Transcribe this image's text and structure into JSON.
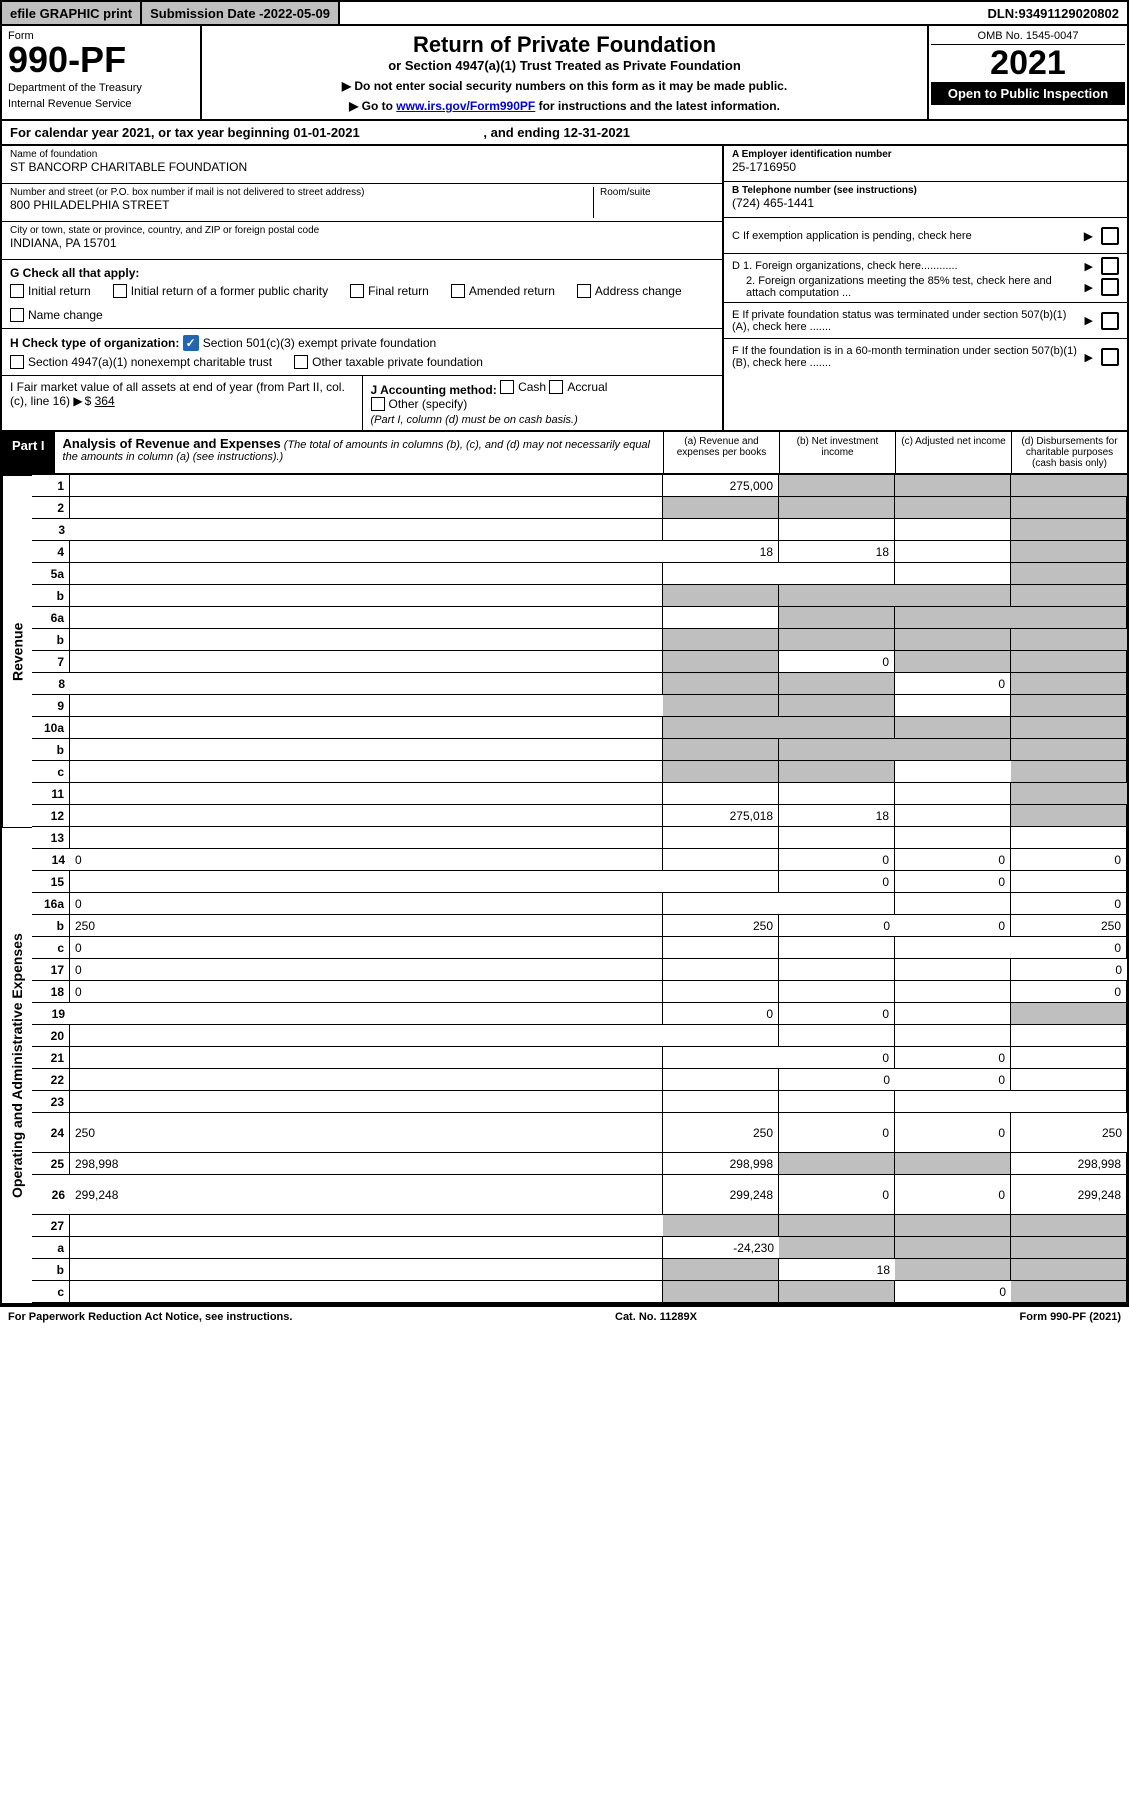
{
  "top_bar": {
    "efile": "efile GRAPHIC print",
    "sub_date_label": "Submission Date - ",
    "sub_date": "2022-05-09",
    "dln_label": "DLN: ",
    "dln": "93491129020802"
  },
  "header": {
    "form_label": "Form",
    "form_number": "990-PF",
    "dept1": "Department of the Treasury",
    "dept2": "Internal Revenue Service",
    "title": "Return of Private Foundation",
    "subtitle": "or Section 4947(a)(1) Trust Treated as Private Foundation",
    "note1": "Do not enter social security numbers on this form as it may be made public.",
    "note2_pre": "Go to ",
    "note2_link": "www.irs.gov/Form990PF",
    "note2_post": " for instructions and the latest information.",
    "omb": "OMB No. 1545-0047",
    "year": "2021",
    "open_pub": "Open to Public Inspection"
  },
  "cal_year": {
    "prefix": "For calendar year 2021, or tax year beginning ",
    "begin": "01-01-2021",
    "mid": " , and ending ",
    "end": "12-31-2021"
  },
  "entity": {
    "name_label": "Name of foundation",
    "name": "ST BANCORP CHARITABLE FOUNDATION",
    "addr_label": "Number and street (or P.O. box number if mail is not delivered to street address)",
    "addr": "800 PHILADELPHIA STREET",
    "room_label": "Room/suite",
    "city_label": "City or town, state or province, country, and ZIP or foreign postal code",
    "city": "INDIANA, PA   15701",
    "a_label": "A Employer identification number",
    "ein": "25-1716950",
    "b_label": "B Telephone number (see instructions)",
    "phone": "(724) 465-1441",
    "c_label": "C If exemption application is pending, check here",
    "d1": "D 1. Foreign organizations, check here............",
    "d2": "2. Foreign organizations meeting the 85% test, check here and attach computation ...",
    "e": "E  If private foundation status was terminated under section 507(b)(1)(A), check here .......",
    "f": "F  If the foundation is in a 60-month termination under section 507(b)(1)(B), check here .......",
    "g_label": "G Check all that apply:",
    "g_opts": [
      "Initial return",
      "Initial return of a former public charity",
      "Final return",
      "Amended return",
      "Address change",
      "Name change"
    ],
    "h_label": "H Check type of organization:",
    "h1": "Section 501(c)(3) exempt private foundation",
    "h2": "Section 4947(a)(1) nonexempt charitable trust",
    "h3": "Other taxable private foundation",
    "i_label": "I Fair market value of all assets at end of year (from Part II, col. (c), line 16)",
    "i_val": "364",
    "j_label": "J Accounting method:",
    "j_opts": [
      "Cash",
      "Accrual"
    ],
    "j_other": "Other (specify)",
    "j_note": "(Part I, column (d) must be on cash basis.)"
  },
  "part1": {
    "label": "Part I",
    "title": "Analysis of Revenue and Expenses",
    "note": "(The total of amounts in columns (b), (c), and (d) may not necessarily equal the amounts in column (a) (see instructions).)",
    "col_a": "(a)  Revenue and expenses per books",
    "col_b": "(b)  Net investment income",
    "col_c": "(c)  Adjusted net income",
    "col_d": "(d)  Disbursements for charitable purposes (cash basis only)"
  },
  "vlabels": {
    "rev": "Revenue",
    "exp": "Operating and Administrative Expenses"
  },
  "rows": [
    {
      "n": "1",
      "d": "",
      "a": "275,000",
      "b": "",
      "c": "",
      "sb": true,
      "sc": true,
      "sd": true
    },
    {
      "n": "2",
      "d": "",
      "a": "",
      "b": "",
      "c": "",
      "sa": true,
      "sb": true,
      "sc": true,
      "sd": true,
      "dots": true
    },
    {
      "n": "3",
      "d": "",
      "a": "",
      "b": "",
      "c": "",
      "sd": true
    },
    {
      "n": "4",
      "d": "",
      "a": "18",
      "b": "18",
      "c": "",
      "sd": true,
      "dots": true
    },
    {
      "n": "5a",
      "d": "",
      "a": "",
      "b": "",
      "c": "",
      "sd": true,
      "dots": true
    },
    {
      "n": "b",
      "d": "",
      "a": "",
      "b": "",
      "c": "",
      "sa": true,
      "sb": true,
      "sc": true,
      "sd": true
    },
    {
      "n": "6a",
      "d": "",
      "a": "",
      "b": "",
      "c": "",
      "sb": true,
      "sc": true,
      "sd": true
    },
    {
      "n": "b",
      "d": "",
      "a": "",
      "b": "",
      "c": "",
      "sa": true,
      "sb": true,
      "sc": true,
      "sd": true
    },
    {
      "n": "7",
      "d": "",
      "a": "",
      "b": "0",
      "c": "",
      "sa": true,
      "sc": true,
      "sd": true,
      "dots": true
    },
    {
      "n": "8",
      "d": "",
      "a": "",
      "b": "",
      "c": "0",
      "sa": true,
      "sb": true,
      "sd": true,
      "dots": true
    },
    {
      "n": "9",
      "d": "",
      "a": "",
      "b": "",
      "c": "",
      "sa": true,
      "sb": true,
      "sd": true,
      "dots": true
    },
    {
      "n": "10a",
      "d": "",
      "a": "",
      "b": "",
      "c": "",
      "sa": true,
      "sb": true,
      "sc": true,
      "sd": true
    },
    {
      "n": "b",
      "d": "",
      "a": "",
      "b": "",
      "c": "",
      "sa": true,
      "sb": true,
      "sc": true,
      "sd": true,
      "dots": true
    },
    {
      "n": "c",
      "d": "",
      "a": "",
      "b": "",
      "c": "",
      "sa": true,
      "sb": true,
      "sd": true,
      "dots": true
    },
    {
      "n": "11",
      "d": "",
      "a": "",
      "b": "",
      "c": "",
      "sd": true,
      "dots": true
    },
    {
      "n": "12",
      "d": "",
      "a": "275,018",
      "b": "18",
      "c": "",
      "sd": true,
      "dots": true
    },
    {
      "n": "13",
      "d": "",
      "a": "",
      "b": "",
      "c": ""
    },
    {
      "n": "14",
      "d": "0",
      "a": "",
      "b": "0",
      "c": "0",
      "dots": true
    },
    {
      "n": "15",
      "d": "",
      "a": "",
      "b": "0",
      "c": "0",
      "dots": true
    },
    {
      "n": "16a",
      "d": "0",
      "a": "",
      "b": "",
      "c": "",
      "dots": true
    },
    {
      "n": "b",
      "d": "250",
      "a": "250",
      "b": "0",
      "c": "0",
      "dots": true
    },
    {
      "n": "c",
      "d": "0",
      "a": "",
      "b": "",
      "c": "",
      "dots": true
    },
    {
      "n": "17",
      "d": "0",
      "a": "",
      "b": "",
      "c": "",
      "dots": true
    },
    {
      "n": "18",
      "d": "0",
      "a": "",
      "b": "",
      "c": "",
      "dots": true
    },
    {
      "n": "19",
      "d": "",
      "a": "0",
      "b": "0",
      "c": "",
      "sd": true,
      "dots": true
    },
    {
      "n": "20",
      "d": "",
      "a": "",
      "b": "",
      "c": "",
      "dots": true
    },
    {
      "n": "21",
      "d": "",
      "a": "",
      "b": "0",
      "c": "0",
      "dots": true
    },
    {
      "n": "22",
      "d": "",
      "a": "",
      "b": "0",
      "c": "0",
      "dots": true
    },
    {
      "n": "23",
      "d": "",
      "a": "",
      "b": "",
      "c": "",
      "dots": true
    },
    {
      "n": "24",
      "d": "250",
      "a": "250",
      "b": "0",
      "c": "0",
      "dots": true,
      "tall": true
    },
    {
      "n": "25",
      "d": "298,998",
      "a": "298,998",
      "b": "",
      "c": "",
      "sb": true,
      "sc": true,
      "dots": true
    },
    {
      "n": "26",
      "d": "299,248",
      "a": "299,248",
      "b": "0",
      "c": "0",
      "tall": true
    },
    {
      "n": "27",
      "d": "",
      "a": "",
      "b": "",
      "c": "",
      "sa": true,
      "sb": true,
      "sc": true,
      "sd": true
    },
    {
      "n": "a",
      "d": "",
      "a": "-24,230",
      "b": "",
      "c": "",
      "sb": true,
      "sc": true,
      "sd": true
    },
    {
      "n": "b",
      "d": "",
      "a": "",
      "b": "18",
      "c": "",
      "sa": true,
      "sc": true,
      "sd": true
    },
    {
      "n": "c",
      "d": "",
      "a": "",
      "b": "",
      "c": "0",
      "sa": true,
      "sb": true,
      "sd": true,
      "dots": true
    }
  ],
  "footer": {
    "left": "For Paperwork Reduction Act Notice, see instructions.",
    "mid": "Cat. No. 11289X",
    "right": "Form 990-PF (2021)"
  },
  "colors": {
    "shade": "#bfbfbf",
    "link": "#0000cc",
    "check": "#2166b3"
  }
}
